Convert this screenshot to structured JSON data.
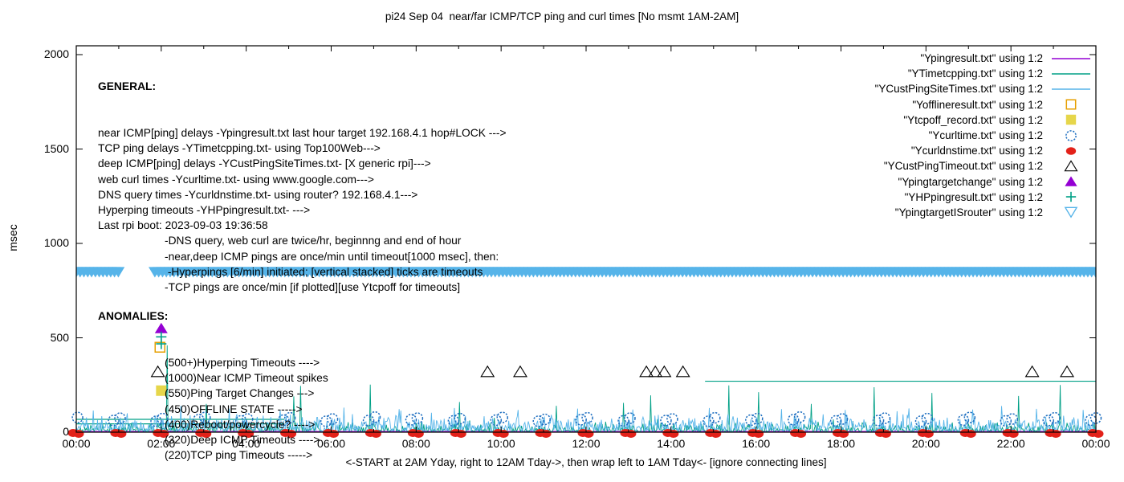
{
  "title": "pi24 Sep 04  near/far ICMP/TCP ping and curl times [No msmt 1AM-2AM]",
  "ylabel": "msec",
  "xlabel_note": "<-START at 2AM Yday, right to 12AM Tday->, then wrap left to 1AM Tday<- [ignore connecting lines]",
  "general": {
    "title": "GENERAL:",
    "lines": [
      "near ICMP[ping] delays -Ypingresult.txt last hour target 192.168.4.1 hop#LOCK --->",
      "TCP ping delays -YTimetcpping.txt- using Top100Web--->",
      "deep ICMP[ping] delays -YCustPingSiteTimes.txt- [X generic rpi]--->",
      "web curl times -Ycurltime.txt- using www.google.com--->",
      "DNS query times -Ycurldnstime.txt- using router? 192.168.4.1--->",
      "Hyperping timeouts -YHPpingresult.txt- --->",
      "Last rpi boot: 2023-09-03 19:36:58"
    ],
    "notes": [
      "-DNS query, web curl are twice/hr, beginnng and end of hour",
      "-near,deep ICMP pings are once/min until timeout[1000 msec], then:",
      " -Hyperpings [6/min] initiated; [vertical stacked] ticks are timeouts",
      "-TCP pings are once/min [if plotted][use Ytcpoff for timeouts]"
    ]
  },
  "anomalies": {
    "title": "ANOMALIES:",
    "lines": [
      "(500+)Hyperping Timeouts ---->",
      "(1000)Near ICMP Timeout spikes",
      "(550)Ping Target Changes --->",
      "(450)OFFLINE STATE ----->",
      "(400)Reboot/powercycle? ---->",
      "(320)Deep ICMP Timeouts ---->",
      "(220)TCP ping Timeouts ----->"
    ]
  },
  "colors": {
    "purple": "#9400d3",
    "teal": "#00a086",
    "lightblue": "#56b4e9",
    "blue": "#1f6fc0",
    "red": "#e32119",
    "orange": "#e69f00",
    "yellow": "#e6d64a",
    "black": "#000000"
  },
  "chart_data": {
    "type": "line+scatter (gnuplot style)",
    "x_unit": "time of day, hours 0-24",
    "xlim": [
      0,
      24
    ],
    "ylim": [
      0,
      2050
    ],
    "grid": false,
    "legend_position": "top-right inside",
    "x_tick_hours": [
      0,
      2,
      4,
      6,
      8,
      10,
      12,
      14,
      16,
      18,
      20,
      22,
      24
    ],
    "x_tick_labels": [
      "00:00",
      "02:00",
      "04:00",
      "06:00",
      "08:00",
      "10:00",
      "12:00",
      "14:00",
      "16:00",
      "18:00",
      "20:00",
      "22:00",
      "00:00"
    ],
    "y_ticks": [
      0,
      500,
      1000,
      1500,
      2000
    ],
    "noise_seed": 42,
    "series": [
      {
        "name": "Ypingresult.txt",
        "legend": "\"Ypingresult.txt\" using 1:2",
        "type": "line",
        "color_key": "purple",
        "baseline_msec": 4
      },
      {
        "name": "YTimetcpping.txt",
        "legend": "\"YTimetcpping.txt\" using 1:2",
        "type": "noisy-line",
        "color_key": "teal",
        "noise": {
          "base": 2,
          "amp": 55,
          "step_hours": 0.02
        },
        "spikes": [
          [
            2.14,
            460
          ],
          [
            3.05,
            150
          ],
          [
            5.12,
            190
          ],
          [
            5.28,
            245
          ],
          [
            6.92,
            252
          ],
          [
            9.02,
            160
          ],
          [
            11.3,
            140
          ],
          [
            12.88,
            155
          ],
          [
            13.52,
            195
          ],
          [
            15.35,
            248
          ],
          [
            16.06,
            212
          ],
          [
            17.3,
            150
          ],
          [
            18.78,
            238
          ],
          [
            20.15,
            208
          ],
          [
            22.17,
            192
          ],
          [
            23.15,
            250
          ]
        ],
        "flat_segments": [
          [
            0,
            4.9,
            68
          ],
          [
            0,
            4.9,
            44
          ],
          [
            14.8,
            24,
            270
          ]
        ]
      },
      {
        "name": "YCustPingSiteTimes.txt",
        "legend": "\"YCustPingSiteTimes.txt\" using 1:2",
        "type": "noisy-line",
        "color_key": "lightblue",
        "noise": {
          "base": 6,
          "amp": 95,
          "step_hours": 0.02
        },
        "spikes": [
          [
            0.4,
            115
          ],
          [
            1.2,
            100
          ],
          [
            2.45,
            140
          ],
          [
            3.6,
            125
          ],
          [
            4.8,
            118
          ],
          [
            6.3,
            130
          ],
          [
            7.6,
            122
          ],
          [
            8.9,
            128
          ],
          [
            10.4,
            118
          ],
          [
            11.8,
            125
          ],
          [
            13.1,
            120
          ],
          [
            14.9,
            128
          ],
          [
            16.6,
            122
          ],
          [
            18.1,
            118
          ],
          [
            19.6,
            126
          ],
          [
            21.1,
            120
          ],
          [
            22.6,
            124
          ],
          [
            23.7,
            118
          ]
        ],
        "flat_segments": []
      },
      {
        "name": "Yofflineresult.txt",
        "legend": "\"Yofflineresult.txt\" using 1:2",
        "type": "points",
        "marker": "open-square",
        "color_key": "orange",
        "points": [
          [
            1.97,
            450
          ]
        ]
      },
      {
        "name": "Ytcpoff_record.txt",
        "legend": "\"Ytcpoff_record.txt\" using 1:2",
        "type": "points",
        "marker": "filled-square",
        "color_key": "yellow",
        "points": [
          [
            2.0,
            220
          ]
        ]
      },
      {
        "name": "Ycurltime.txt",
        "legend": "\"Ycurltime.txt\" using 1:2",
        "type": "points",
        "marker": "open-circle",
        "color_key": "blue",
        "points": [
          [
            0.03,
            78
          ],
          [
            0.88,
            62
          ],
          [
            1.03,
            74
          ],
          [
            1.88,
            58
          ],
          [
            2.03,
            72
          ],
          [
            2.88,
            66
          ],
          [
            3.03,
            78
          ],
          [
            3.88,
            60
          ],
          [
            4.03,
            70
          ],
          [
            4.88,
            64
          ],
          [
            5.03,
            76
          ],
          [
            5.88,
            58
          ],
          [
            6.03,
            70
          ],
          [
            6.88,
            62
          ],
          [
            7.03,
            80
          ],
          [
            7.88,
            66
          ],
          [
            8.03,
            74
          ],
          [
            8.88,
            60
          ],
          [
            9.03,
            72
          ],
          [
            9.88,
            64
          ],
          [
            10.03,
            78
          ],
          [
            10.88,
            58
          ],
          [
            11.03,
            68
          ],
          [
            11.88,
            66
          ],
          [
            12.03,
            76
          ],
          [
            12.88,
            60
          ],
          [
            13.03,
            74
          ],
          [
            13.88,
            62
          ],
          [
            14.03,
            70
          ],
          [
            14.88,
            58
          ],
          [
            15.03,
            76
          ],
          [
            15.88,
            64
          ],
          [
            16.03,
            72
          ],
          [
            16.88,
            66
          ],
          [
            17.03,
            80
          ],
          [
            17.88,
            60
          ],
          [
            18.03,
            70
          ],
          [
            18.88,
            62
          ],
          [
            19.03,
            74
          ],
          [
            19.88,
            58
          ],
          [
            20.03,
            72
          ],
          [
            20.88,
            64
          ],
          [
            21.03,
            78
          ],
          [
            21.88,
            60
          ],
          [
            22.03,
            70
          ],
          [
            22.88,
            62
          ],
          [
            23.03,
            76
          ],
          [
            23.88,
            64
          ],
          [
            24.0,
            75
          ]
        ]
      },
      {
        "name": "Ycurldnstime.txt",
        "legend": "\"Ycurldnstime.txt\" using 1:2",
        "type": "points",
        "marker": "filled-circle-cluster",
        "color_key": "red",
        "value_msec": 0,
        "hours": [
          0,
          1,
          2,
          3,
          4,
          5,
          6,
          7,
          8,
          9,
          10,
          11,
          12,
          13,
          14,
          15,
          16,
          17,
          18,
          19,
          20,
          21,
          22,
          23,
          24
        ]
      },
      {
        "name": "YCustPingTimeout.txt",
        "legend": "\"YCustPingTimeout.txt\" using 1:2",
        "type": "points",
        "marker": "open-triangle",
        "color_key": "black",
        "points": [
          [
            1.92,
            320
          ],
          [
            9.68,
            320
          ],
          [
            10.45,
            320
          ],
          [
            13.42,
            320
          ],
          [
            13.63,
            320
          ],
          [
            13.84,
            320
          ],
          [
            14.28,
            320
          ],
          [
            22.5,
            320
          ],
          [
            23.32,
            320
          ]
        ]
      },
      {
        "name": "Ypingtargetchange",
        "legend": "\"Ypingtargetchange\" using 1:2",
        "type": "points",
        "marker": "filled-triangle",
        "color_key": "purple",
        "points": [
          [
            2.0,
            550
          ]
        ]
      },
      {
        "name": "YHPpingresult.txt",
        "legend": "\"YHPpingresult.txt\" using 1:2",
        "type": "points",
        "marker": "plus",
        "color_key": "teal",
        "points": [
          [
            2.0,
            505
          ],
          [
            2.0,
            468
          ]
        ]
      },
      {
        "name": "YpingtargetISrouter",
        "legend": "\"YpingtargetISrouter\" using 1:2",
        "type": "down-triangle-band",
        "color_key": "lightblue",
        "value_msec": 848,
        "gap_note": "No msmt 1AM-2AM",
        "segments": [
          [
            0,
            1.0
          ],
          [
            1.85,
            24
          ]
        ]
      }
    ]
  }
}
